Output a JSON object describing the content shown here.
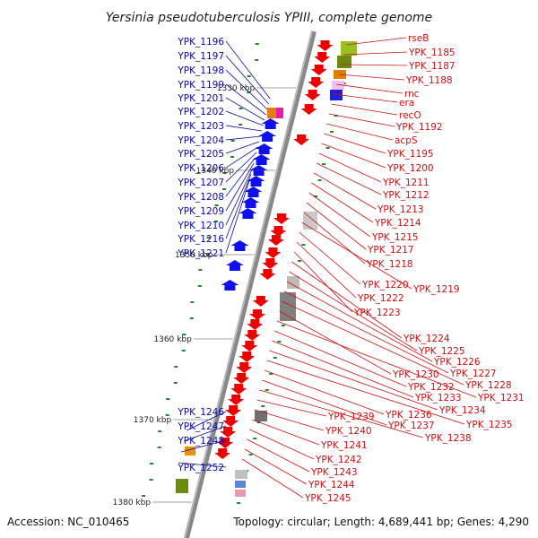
{
  "title": "Yersinia pseudotuberculosis YPIII, complete genome",
  "footer": {
    "accession": "Accession: NC_010465",
    "topology": "Topology: circular; Length: 4,689,441 bp; Genes: 4,290"
  },
  "colors": {
    "plus_strand": "#ee0000",
    "minus_strand": "#1010ee",
    "plus_label": "#cc1111",
    "minus_label": "#0a0aa6",
    "axis": "#888888",
    "tick": "#228822"
  },
  "kbp_marks": [
    "1330 kbp",
    "1340 kbp",
    "1350 kbp",
    "1360 kbp",
    "1370 kbp",
    "1380 kbp"
  ],
  "minus_labels": [
    "YPK_1196",
    "YPK_1197",
    "YPK_1198",
    "YPK_1199",
    "YPK_1201",
    "YPK_1202",
    "YPK_1203",
    "YPK_1204",
    "YPK_1205",
    "YPK_1206",
    "YPK_1207",
    "YPK_1208",
    "YPK_1209",
    "YPK_1210",
    "YPK_1216",
    "YPK_1221",
    "YPK_1246",
    "YPK_1247",
    "YPK_1248",
    "YPK_1252"
  ],
  "plus_labels": [
    "rseB",
    "YPK_1185",
    "YPK_1187",
    "YPK_1188",
    "rnc",
    "era",
    "recO",
    "YPK_1192",
    "acpS",
    "YPK_1195",
    "YPK_1200",
    "YPK_1211",
    "YPK_1212",
    "YPK_1213",
    "YPK_1214",
    "YPK_1215",
    "YPK_1217",
    "YPK_1218",
    "YPK_1219",
    "YPK_1220",
    "YPK_1222",
    "YPK_1223",
    "YPK_1224",
    "YPK_1225",
    "YPK_1226",
    "YPK_1227",
    "YPK_1228",
    "YPK_1230",
    "YPK_1231",
    "YPK_1232",
    "YPK_1233",
    "YPK_1234",
    "YPK_1235",
    "YPK_1236",
    "YPK_1237",
    "YPK_1238",
    "YPK_1239",
    "YPK_1240",
    "YPK_1241",
    "YPK_1242",
    "YPK_1243",
    "YPK_1244",
    "YPK_1245"
  ]
}
